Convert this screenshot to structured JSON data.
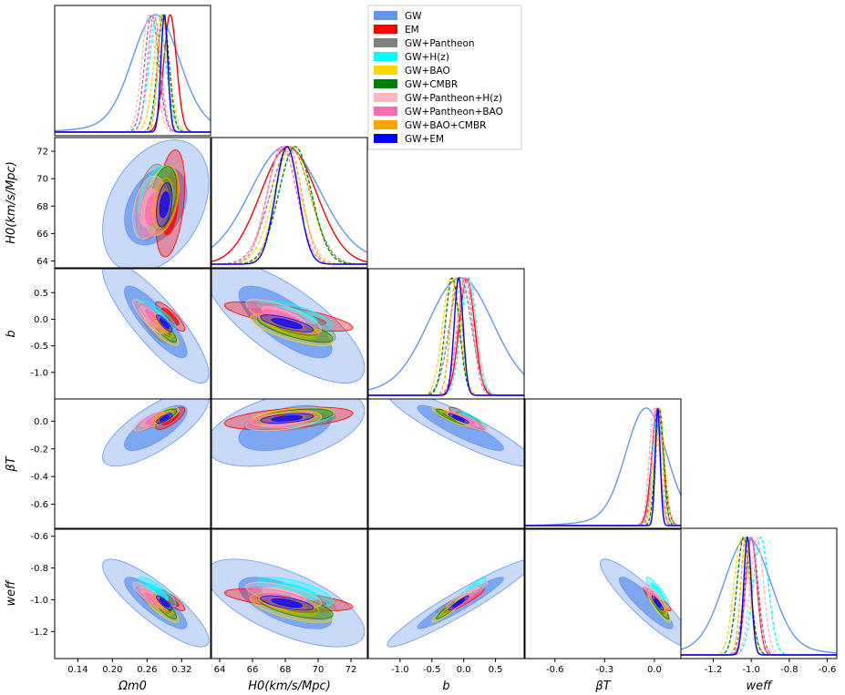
{
  "chart_data": {
    "type": "corner",
    "title": "",
    "parameters": [
      {
        "key": "om",
        "label": "Ωm0",
        "range": [
          0.1,
          0.37
        ],
        "ticks": [
          "0.14",
          "0.20",
          "0.26",
          "0.32"
        ],
        "tick_values": [
          0.14,
          0.2,
          0.26,
          0.32
        ]
      },
      {
        "key": "h0",
        "label": "H0(km/s/Mpc)",
        "range": [
          63.5,
          73.0
        ],
        "ticks": [
          "64",
          "66",
          "68",
          "70",
          "72"
        ],
        "tick_values": [
          64,
          66,
          68,
          70,
          72
        ]
      },
      {
        "key": "b",
        "label": "b",
        "range": [
          -1.5,
          0.95
        ],
        "ticks": [
          "-1.0",
          "-0.5",
          "0.0",
          "0.5"
        ],
        "tick_values": [
          -1.0,
          -0.5,
          0.0,
          0.5
        ],
        "yticks": [
          "0.5",
          "0.0",
          "-0.5",
          "-1.0"
        ],
        "ytick_values": [
          0.5,
          0.0,
          -0.5,
          -1.0
        ]
      },
      {
        "key": "bt",
        "label": "βT",
        "range": [
          -0.78,
          0.16
        ],
        "ticks": [
          "-0.6",
          "-0.3",
          "0.0"
        ],
        "tick_values": [
          -0.6,
          -0.3,
          0.0
        ],
        "yticks": [
          "0.0",
          "-0.2",
          "-0.4",
          "-0.6"
        ],
        "ytick_values": [
          0.0,
          -0.2,
          -0.4,
          -0.6
        ]
      },
      {
        "key": "w",
        "label": "weff",
        "range": [
          -1.37,
          -0.55
        ],
        "ticks": [
          "-1.2",
          "-1.0",
          "-0.8",
          "-0.6"
        ],
        "tick_values": [
          -1.2,
          -1.0,
          -0.8,
          -0.6
        ],
        "yticks": [
          "-0.6",
          "-0.8",
          "-1.0",
          "-1.2"
        ],
        "ytick_values": [
          -0.6,
          -0.8,
          -1.0,
          -1.2
        ]
      }
    ],
    "axis_labels": {
      "x": [
        "Ωm0",
        "H0(km/s/Mpc)",
        "b",
        "βT",
        "weff"
      ],
      "y": [
        "H0(km/s/Mpc)",
        "b",
        "βT",
        "weff"
      ]
    },
    "legend_position": "top-center",
    "series": [
      {
        "name": "GW",
        "color": "#6495ED",
        "style": "solid",
        "means": [
          0.275,
          68.0,
          -0.05,
          -0.05,
          -1.02
        ],
        "sigmas": [
          0.04,
          2.1,
          0.5,
          0.12,
          0.12
        ]
      },
      {
        "name": "EM",
        "color": "#FF0000",
        "style": "solid",
        "means": [
          0.3,
          68.2,
          0.05,
          0.02,
          -1.0
        ],
        "sigmas": [
          0.011,
          1.7,
          0.12,
          0.035,
          0.03
        ]
      },
      {
        "name": "GW+Pantheon",
        "color": "#808080",
        "style": "dashed",
        "means": [
          0.268,
          68.3,
          -0.05,
          0.0,
          -1.0
        ],
        "sigmas": [
          0.012,
          1.2,
          0.17,
          0.03,
          0.035
        ]
      },
      {
        "name": "GW+H(z)",
        "color": "#00FFFF",
        "style": "dashed",
        "means": [
          0.278,
          68.6,
          0.08,
          0.02,
          -0.95
        ],
        "sigmas": [
          0.014,
          1.0,
          0.12,
          0.03,
          0.04
        ]
      },
      {
        "name": "GW+BAO",
        "color": "#FFD700",
        "style": "dashed",
        "means": [
          0.285,
          68.4,
          -0.2,
          0.03,
          -1.05
        ],
        "sigmas": [
          0.013,
          1.1,
          0.13,
          0.03,
          0.04
        ]
      },
      {
        "name": "GW+CMBR",
        "color": "#008000",
        "style": "dashed",
        "means": [
          0.288,
          68.6,
          -0.18,
          0.03,
          -1.04
        ],
        "sigmas": [
          0.01,
          1.0,
          0.11,
          0.025,
          0.035
        ]
      },
      {
        "name": "GW+Pantheon+H(z)",
        "color": "#FFB6C1",
        "style": "dashed",
        "means": [
          0.263,
          67.9,
          0.05,
          0.0,
          -0.97
        ],
        "sigmas": [
          0.012,
          1.0,
          0.14,
          0.03,
          0.035
        ]
      },
      {
        "name": "GW+Pantheon+BAO",
        "color": "#FF69B4",
        "style": "dashed",
        "means": [
          0.272,
          67.8,
          0.02,
          0.01,
          -1.0
        ],
        "sigmas": [
          0.011,
          0.9,
          0.12,
          0.025,
          0.03
        ]
      },
      {
        "name": "GW+BAO+CMBR",
        "color": "#FFA500",
        "style": "dashed",
        "means": [
          0.287,
          68.2,
          -0.12,
          0.03,
          -1.03
        ],
        "sigmas": [
          0.008,
          0.8,
          0.09,
          0.02,
          0.025
        ]
      },
      {
        "name": "GW+EM",
        "color": "#0000FF",
        "style": "solid",
        "means": [
          0.29,
          68.1,
          -0.08,
          0.02,
          -1.02
        ],
        "sigmas": [
          0.006,
          0.7,
          0.07,
          0.015,
          0.02
        ]
      }
    ]
  }
}
